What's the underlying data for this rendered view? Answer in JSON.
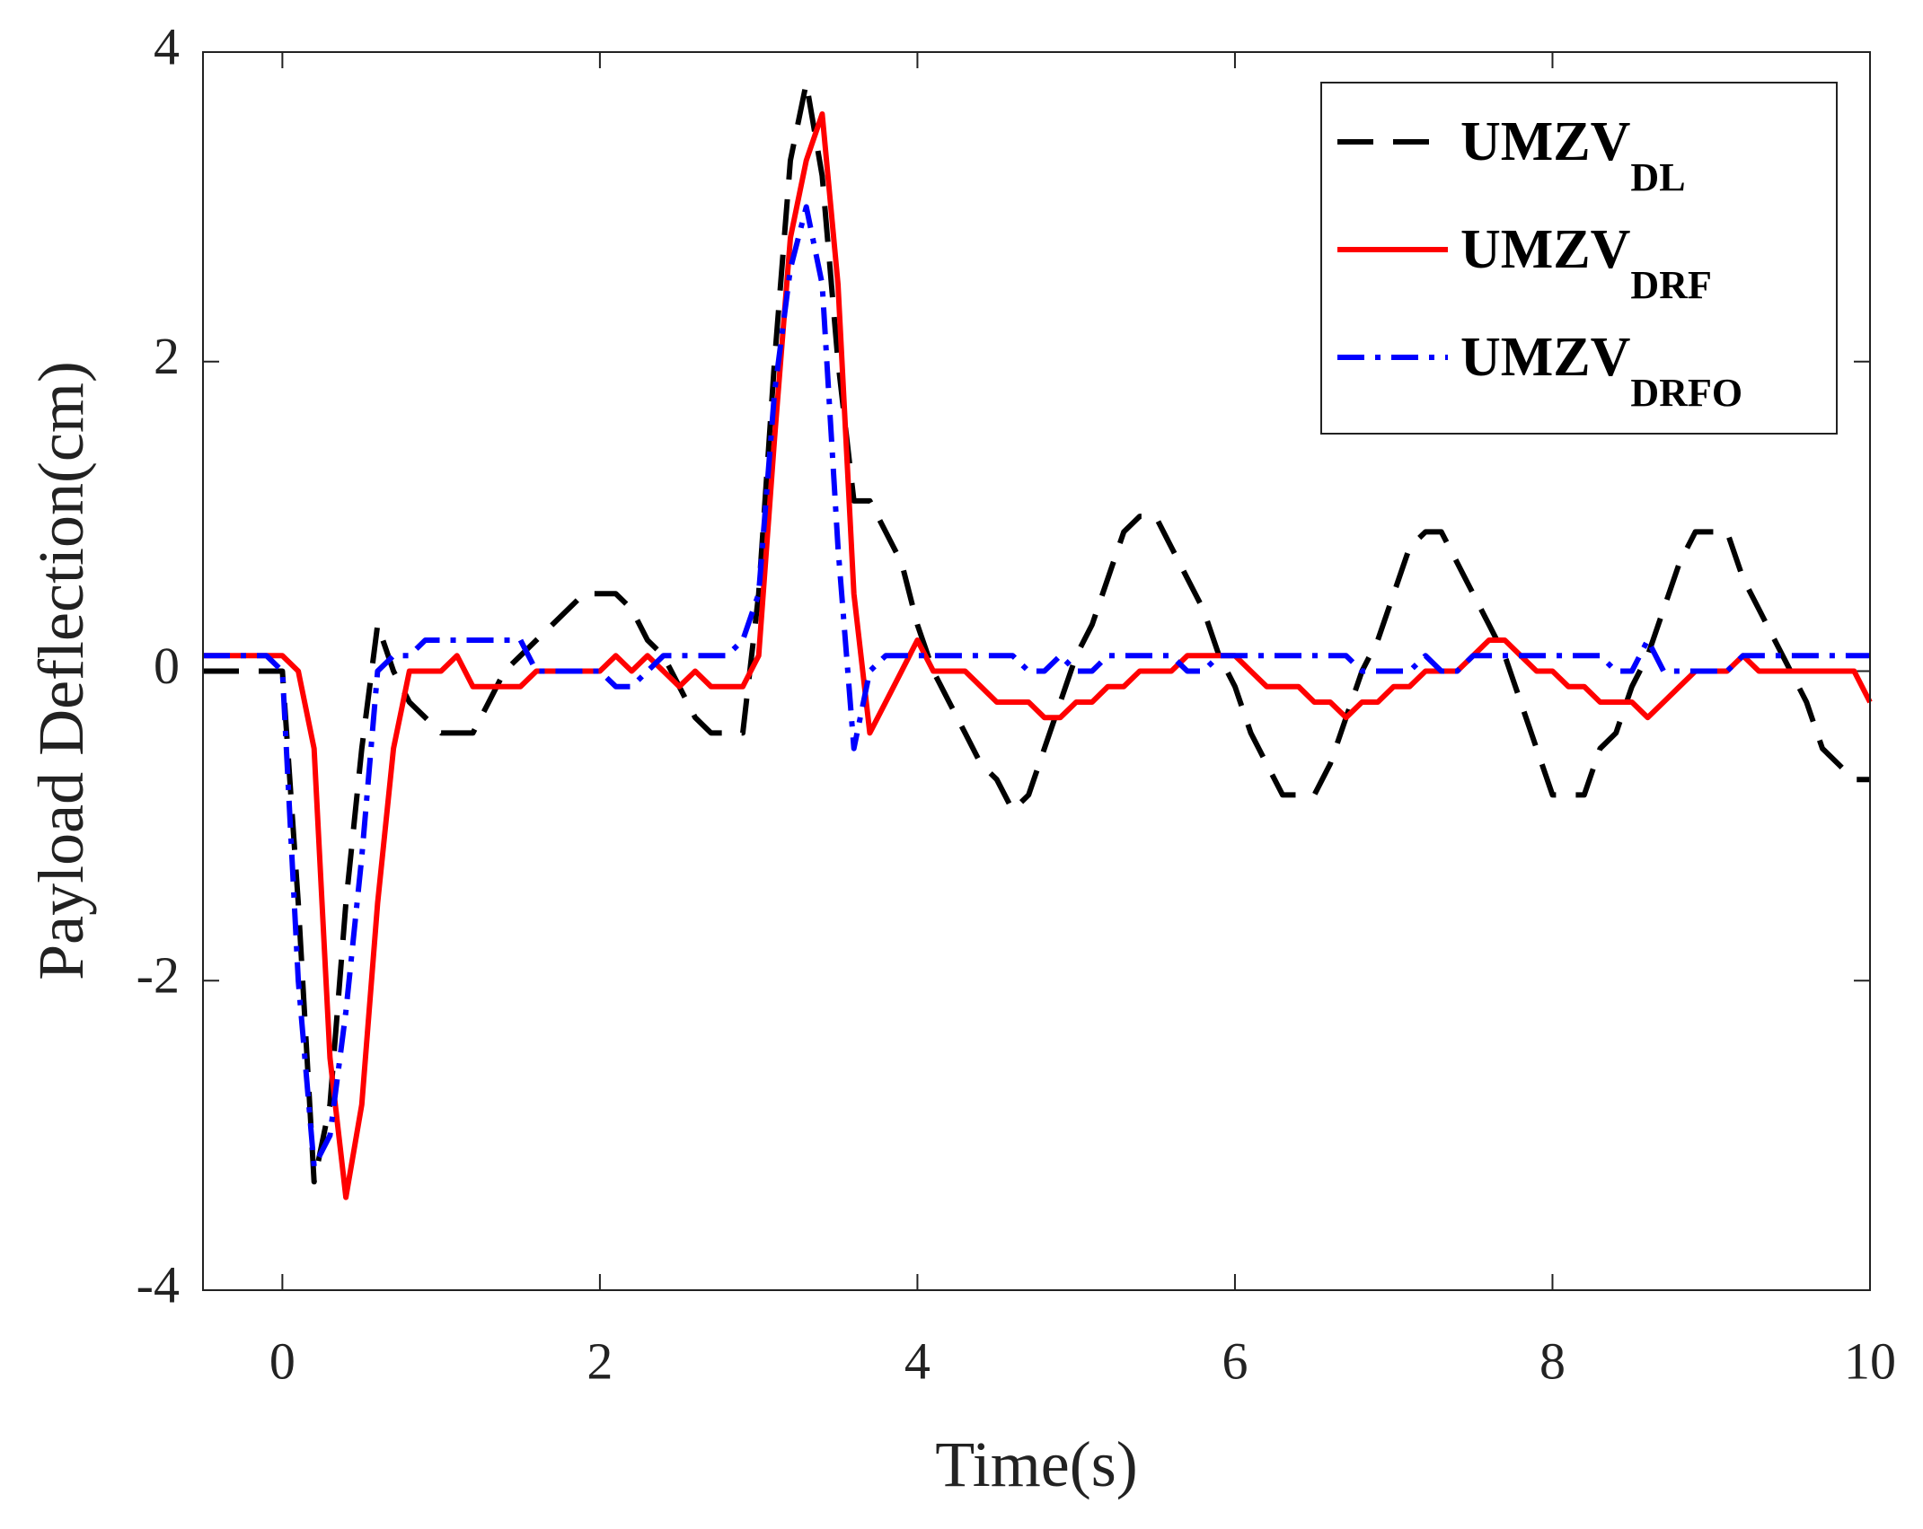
{
  "chart_data": {
    "type": "line",
    "xlabel": "Time(s)",
    "ylabel": "Payload Deflection(cm)",
    "x": [
      -0.5,
      -0.4,
      -0.3,
      -0.2,
      -0.1,
      0,
      0.1,
      0.2,
      0.3,
      0.4,
      0.5,
      0.6,
      0.7,
      0.8,
      0.9,
      1,
      1.1,
      1.2,
      1.3,
      1.4,
      1.5,
      1.6,
      1.7,
      1.8,
      1.9,
      2,
      2.1,
      2.2,
      2.3,
      2.4,
      2.5,
      2.6,
      2.7,
      2.8,
      2.9,
      3,
      3.1,
      3.2,
      3.3,
      3.4,
      3.5,
      3.6,
      3.7,
      3.8,
      3.9,
      4,
      4.1,
      4.2,
      4.3,
      4.4,
      4.5,
      4.6,
      4.7,
      4.8,
      4.9,
      5,
      5.1,
      5.2,
      5.3,
      5.4,
      5.5,
      5.6,
      5.7,
      5.8,
      5.9,
      6,
      6.1,
      6.2,
      6.3,
      6.4,
      6.5,
      6.6,
      6.7,
      6.8,
      6.9,
      7,
      7.1,
      7.2,
      7.3,
      7.4,
      7.5,
      7.6,
      7.7,
      7.8,
      7.9,
      8,
      8.1,
      8.2,
      8.3,
      8.4,
      8.5,
      8.6,
      8.7,
      8.8,
      8.9,
      9,
      9.1,
      9.2,
      9.3,
      9.4,
      9.5,
      9.6,
      9.7,
      9.8,
      9.9,
      10
    ],
    "series": [
      {
        "name": "UMZV",
        "name_subscript": "DL",
        "color": "#000000",
        "dash": "dashed",
        "values": [
          0,
          0,
          0,
          0,
          0,
          0,
          -1.5,
          -3.3,
          -2.8,
          -1.5,
          -0.5,
          0.3,
          0,
          -0.2,
          -0.3,
          -0.4,
          -0.4,
          -0.4,
          -0.2,
          0,
          0.1,
          0.2,
          0.3,
          0.4,
          0.5,
          0.5,
          0.5,
          0.4,
          0.2,
          0.1,
          -0.1,
          -0.3,
          -0.4,
          -0.4,
          -0.4,
          0.5,
          2,
          3.3,
          3.8,
          3.2,
          2,
          1.1,
          1.1,
          0.9,
          0.7,
          0.3,
          0,
          -0.2,
          -0.4,
          -0.6,
          -0.7,
          -0.9,
          -0.8,
          -0.5,
          -0.2,
          0.1,
          0.3,
          0.6,
          0.9,
          1,
          1,
          0.8,
          0.6,
          0.4,
          0.1,
          -0.1,
          -0.4,
          -0.6,
          -0.8,
          -0.8,
          -0.8,
          -0.6,
          -0.3,
          0,
          0.2,
          0.5,
          0.8,
          0.9,
          0.9,
          0.7,
          0.5,
          0.3,
          0.1,
          -0.2,
          -0.5,
          -0.8,
          -0.8,
          -0.8,
          -0.5,
          -0.4,
          -0.1,
          0.1,
          0.4,
          0.7,
          0.9,
          0.9,
          0.9,
          0.6,
          0.4,
          0.2,
          0,
          -0.2,
          -0.5,
          -0.6,
          -0.7,
          -0.7
        ]
      },
      {
        "name": "UMZV",
        "name_subscript": "DRF",
        "color": "#ff0000",
        "dash": "solid",
        "values": [
          0.1,
          0.1,
          0.1,
          0.1,
          0.1,
          0.1,
          0,
          -0.5,
          -2.5,
          -3.4,
          -2.8,
          -1.5,
          -0.5,
          0,
          0,
          0,
          0.1,
          -0.1,
          -0.1,
          -0.1,
          -0.1,
          0,
          0,
          0,
          0,
          0,
          0.1,
          0,
          0.1,
          0,
          -0.1,
          0,
          -0.1,
          -0.1,
          -0.1,
          0.1,
          1.5,
          2.8,
          3.3,
          3.6,
          2.5,
          0.5,
          -0.4,
          -0.2,
          0,
          0.2,
          0,
          0,
          0,
          -0.1,
          -0.2,
          -0.2,
          -0.2,
          -0.3,
          -0.3,
          -0.2,
          -0.2,
          -0.1,
          -0.1,
          0,
          0,
          0,
          0.1,
          0.1,
          0.1,
          0.1,
          0,
          -0.1,
          -0.1,
          -0.1,
          -0.2,
          -0.2,
          -0.3,
          -0.2,
          -0.2,
          -0.1,
          -0.1,
          0,
          0,
          0,
          0.1,
          0.2,
          0.2,
          0.1,
          0,
          0,
          -0.1,
          -0.1,
          -0.2,
          -0.2,
          -0.2,
          -0.3,
          -0.2,
          -0.1,
          0,
          0,
          0,
          0.1,
          0,
          0,
          0,
          0,
          0,
          0,
          0,
          -0.2
        ]
      },
      {
        "name": "UMZV",
        "name_subscript": "DRFO",
        "color": "#0000ff",
        "dash": "dashdot",
        "values": [
          0.1,
          0.1,
          0.1,
          0.1,
          0.1,
          0,
          -2,
          -3.2,
          -3,
          -2.2,
          -1.2,
          0,
          0.1,
          0.1,
          0.2,
          0.2,
          0.2,
          0.2,
          0.2,
          0.2,
          0.2,
          0,
          0,
          0,
          0,
          0,
          -0.1,
          -0.1,
          0,
          0.1,
          0.1,
          0.1,
          0.1,
          0.1,
          0.2,
          0.5,
          1.8,
          2.6,
          3,
          2.5,
          0.8,
          -0.5,
          0,
          0.1,
          0.1,
          0.1,
          0.1,
          0.1,
          0.1,
          0.1,
          0.1,
          0.1,
          0,
          0,
          0.1,
          0,
          0,
          0.1,
          0.1,
          0.1,
          0.1,
          0.1,
          0,
          0,
          0.1,
          0.1,
          0.1,
          0.1,
          0.1,
          0.1,
          0.1,
          0.1,
          0.1,
          0,
          0,
          0,
          0,
          0.1,
          0,
          0,
          0.1,
          0.1,
          0.1,
          0.1,
          0.1,
          0.1,
          0.1,
          0.1,
          0.1,
          0,
          0,
          0.2,
          0,
          0,
          0,
          0,
          0,
          0.1,
          0.1,
          0.1,
          0.1,
          0.1,
          0.1,
          0.1,
          0.1,
          0.1
        ]
      }
    ],
    "xlim": [
      -0.5,
      10
    ],
    "xticks": [
      0,
      2,
      4,
      6,
      8,
      10
    ],
    "ylim": [
      -4,
      4
    ],
    "yticks": [
      -4,
      -2,
      0,
      2,
      4
    ],
    "grid": false,
    "legend": "upper right"
  }
}
